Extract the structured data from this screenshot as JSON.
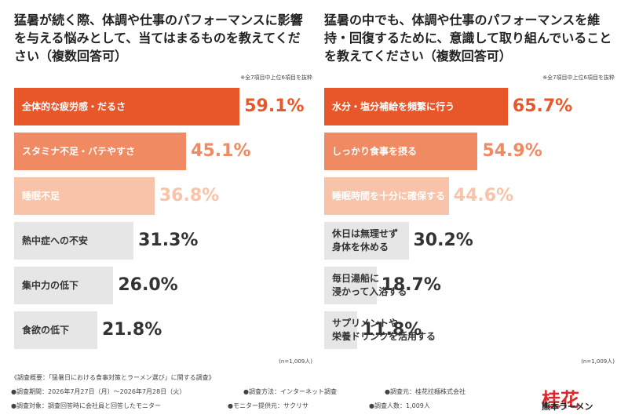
{
  "chart_data": [
    {
      "type": "bar",
      "orientation": "horizontal",
      "title": "猛暑が続く際、体調や仕事のパフォーマンスに影響を与える悩みとして、当てはまるものを教えてください（複数回答可）",
      "note": "※全7項目中上位6項目を抜粋",
      "sample": "(n=1,009人)",
      "categories": [
        "全体的な疲労感・だるさ",
        "スタミナ不足・バテやすさ",
        "睡眠不足",
        "熱中症への不安",
        "集中力の低下",
        "食欲の低下"
      ],
      "values": [
        59.1,
        45.1,
        36.8,
        31.3,
        26.0,
        21.8
      ],
      "value_labels": [
        "59.1%",
        "45.1%",
        "36.8%",
        "31.3%",
        "26.0%",
        "21.8%"
      ],
      "colors": [
        "#e8572a",
        "#f08a62",
        "#f8c3a8",
        "#e6e6e6",
        "#e6e6e6",
        "#e6e6e6"
      ],
      "label_colors": [
        "#e8572a",
        "#f08a62",
        "#f8c3a8",
        "#333333",
        "#333333",
        "#333333"
      ]
    },
    {
      "type": "bar",
      "orientation": "horizontal",
      "title": "猛暑の中でも、体調や仕事のパフォーマンスを維持・回復するために、意識して取り組んでいることを教えてください（複数回答可）",
      "note": "※全7項目中上位6項目を抜粋",
      "sample": "(n=1,009人)",
      "categories": [
        "水分・塩分補給を頻繁に行う",
        "しっかり食事を摂る",
        "睡眠時間を十分に確保する",
        "休日は無理せず\n身体を休める",
        "毎日湯船に\n浸かって入浴する",
        "サプリメントや\n栄養ドリンクを活用する"
      ],
      "values": [
        65.7,
        54.9,
        44.6,
        30.2,
        18.7,
        11.8
      ],
      "value_labels": [
        "65.7%",
        "54.9%",
        "44.6%",
        "30.2%",
        "18.7%",
        "11.8%"
      ],
      "colors": [
        "#e8572a",
        "#f08a62",
        "#f8c3a8",
        "#e6e6e6",
        "#e6e6e6",
        "#e6e6e6"
      ],
      "label_colors": [
        "#e8572a",
        "#f08a62",
        "#f8c3a8",
        "#333333",
        "#333333",
        "#333333"
      ]
    }
  ],
  "footer": {
    "heading": "《調査概要：「猛暑日における食事対策とラーメン選び」に関する調査》",
    "items": [
      "●調査期間：2026年7月27日（月）～2026年7月28日（火）",
      "●調査方法：インターネット調査",
      "●調査元：桂花拉麺株式会社",
      "●調査対象：調査回答時に会社員と回答したモニター",
      "●モニター提供元：サクリサ",
      "●調査人数：1,009人"
    ]
  },
  "logo": {
    "brand": "桂花",
    "sub": "熊本ラーメン"
  }
}
